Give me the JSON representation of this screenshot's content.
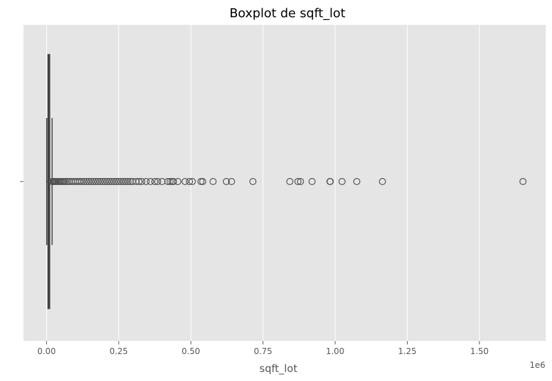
{
  "chart_data": {
    "type": "boxplot",
    "title": "Boxplot de sqft_lot",
    "xlabel": "sqft_lot",
    "ylabel": "",
    "x_offset_label": "1e6",
    "x_ticks": [
      0,
      250000,
      500000,
      750000,
      1000000,
      1250000,
      1500000
    ],
    "x_tick_labels": [
      "0.00",
      "0.25",
      "0.50",
      "0.75",
      "1.00",
      "1.25",
      "1.50"
    ],
    "xlim": [
      -80000,
      1730000
    ],
    "grid": true,
    "box": {
      "min": 520,
      "q1": 5040,
      "median": 7620,
      "q3": 10690,
      "whisker_high": 19160
    },
    "outliers": [
      19500,
      21000,
      23000,
      25000,
      27500,
      30000,
      33000,
      36000,
      40000,
      44000,
      48000,
      52000,
      57000,
      62000,
      68000,
      74000,
      80000,
      87000,
      94000,
      101000,
      108000,
      115000,
      122000,
      130000,
      138000,
      146000,
      154000,
      162000,
      170000,
      178000,
      186000,
      194000,
      202000,
      210000,
      218000,
      226000,
      234000,
      242000,
      250000,
      258000,
      266000,
      274000,
      282000,
      290000,
      298000,
      310000,
      320000,
      330000,
      345000,
      360000,
      375000,
      385000,
      400000,
      420000,
      428000,
      435000,
      440000,
      455000,
      480000,
      495000,
      505000,
      535000,
      541000,
      577000,
      623000,
      641000,
      715000,
      843000,
      871000,
      880000,
      920000,
      982000,
      983000,
      1024000,
      1075000,
      1164000,
      1651000
    ],
    "colors": {
      "background": "#e5e5e5",
      "grid": "#ffffff",
      "box_fill": "#bfbfbf",
      "line": "#404040",
      "outlier": "#555555"
    }
  }
}
